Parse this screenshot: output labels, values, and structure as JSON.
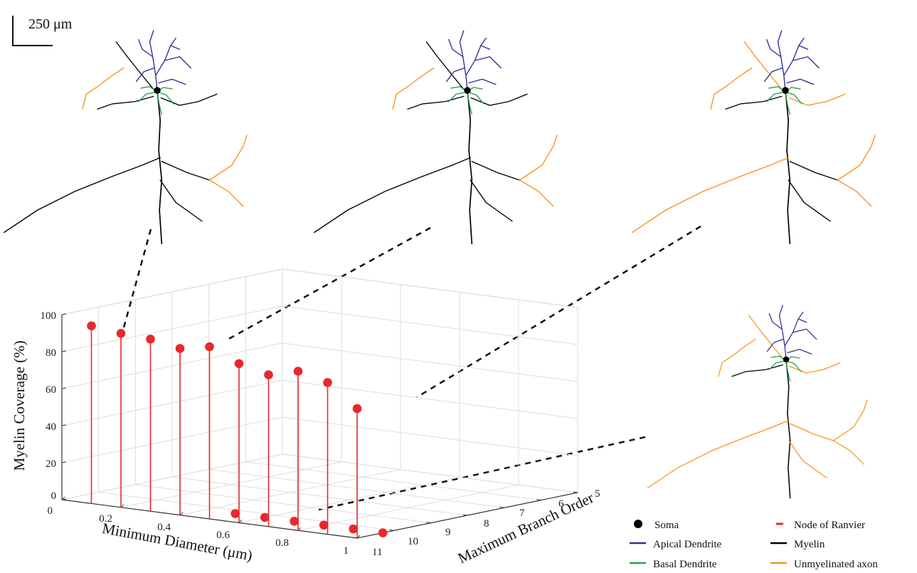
{
  "scale_bar": {
    "label": "250 μm"
  },
  "chart_data": {
    "type": "stem3d",
    "title": "",
    "xlabel": "Minimum Diameter (μm)",
    "ylabel": "Maximum Branch Order",
    "zlabel": "Myelin Coverage (%)",
    "x_ticks": [
      "0",
      "0.2",
      "0.4",
      "0.6",
      "0.8",
      "1"
    ],
    "y_ticks": [
      "5",
      "6",
      "7",
      "8",
      "9",
      "10",
      "11"
    ],
    "z_ticks": [
      "0",
      "20",
      "40",
      "60",
      "80",
      "100"
    ],
    "xlim": [
      0,
      1
    ],
    "ylim": [
      5,
      11
    ],
    "zlim": [
      0,
      100
    ],
    "grid": true,
    "series": [
      {
        "x": 0.1,
        "y": 11,
        "z": 96
      },
      {
        "x": 0.2,
        "y": 11,
        "z": 94
      },
      {
        "x": 0.3,
        "y": 11,
        "z": 93
      },
      {
        "x": 0.4,
        "y": 11,
        "z": 90
      },
      {
        "x": 0.5,
        "y": 11,
        "z": 93
      },
      {
        "x": 0.6,
        "y": 11,
        "z": 86
      },
      {
        "x": 0.7,
        "y": 11,
        "z": 82
      },
      {
        "x": 0.8,
        "y": 11,
        "z": 86
      },
      {
        "x": 0.9,
        "y": 11,
        "z": 82
      },
      {
        "x": 1.0,
        "y": 11,
        "z": 70
      },
      {
        "x": 0.5,
        "y": 10.3,
        "z": 0
      },
      {
        "x": 0.6,
        "y": 10.3,
        "z": 0
      },
      {
        "x": 0.7,
        "y": 10.3,
        "z": 0
      },
      {
        "x": 0.8,
        "y": 10.3,
        "z": 0
      },
      {
        "x": 0.9,
        "y": 10.3,
        "z": 0
      },
      {
        "x": 1.0,
        "y": 10.3,
        "z": 0
      }
    ]
  },
  "legend": [
    {
      "label": "Soma",
      "color": "#000000",
      "marker": "dot"
    },
    {
      "label": "Node of Ranvier",
      "color": "#e8282c",
      "marker": "dash"
    },
    {
      "label": "Apical Dendrite",
      "color": "#2e3192",
      "marker": "line"
    },
    {
      "label": "Myelin",
      "color": "#000000",
      "marker": "line"
    },
    {
      "label": "Basal Dendrite",
      "color": "#22a04a",
      "marker": "line"
    },
    {
      "label": "Unmyelinated axon",
      "color": "#f7941d",
      "marker": "line"
    }
  ],
  "colors": {
    "stem": "#e8282c",
    "marker": "#e8282c",
    "grid": "#dddddd",
    "apical": "#2e3192",
    "basal": "#22a04a",
    "myelin": "#000000",
    "unmyelinated": "#f7941d"
  }
}
